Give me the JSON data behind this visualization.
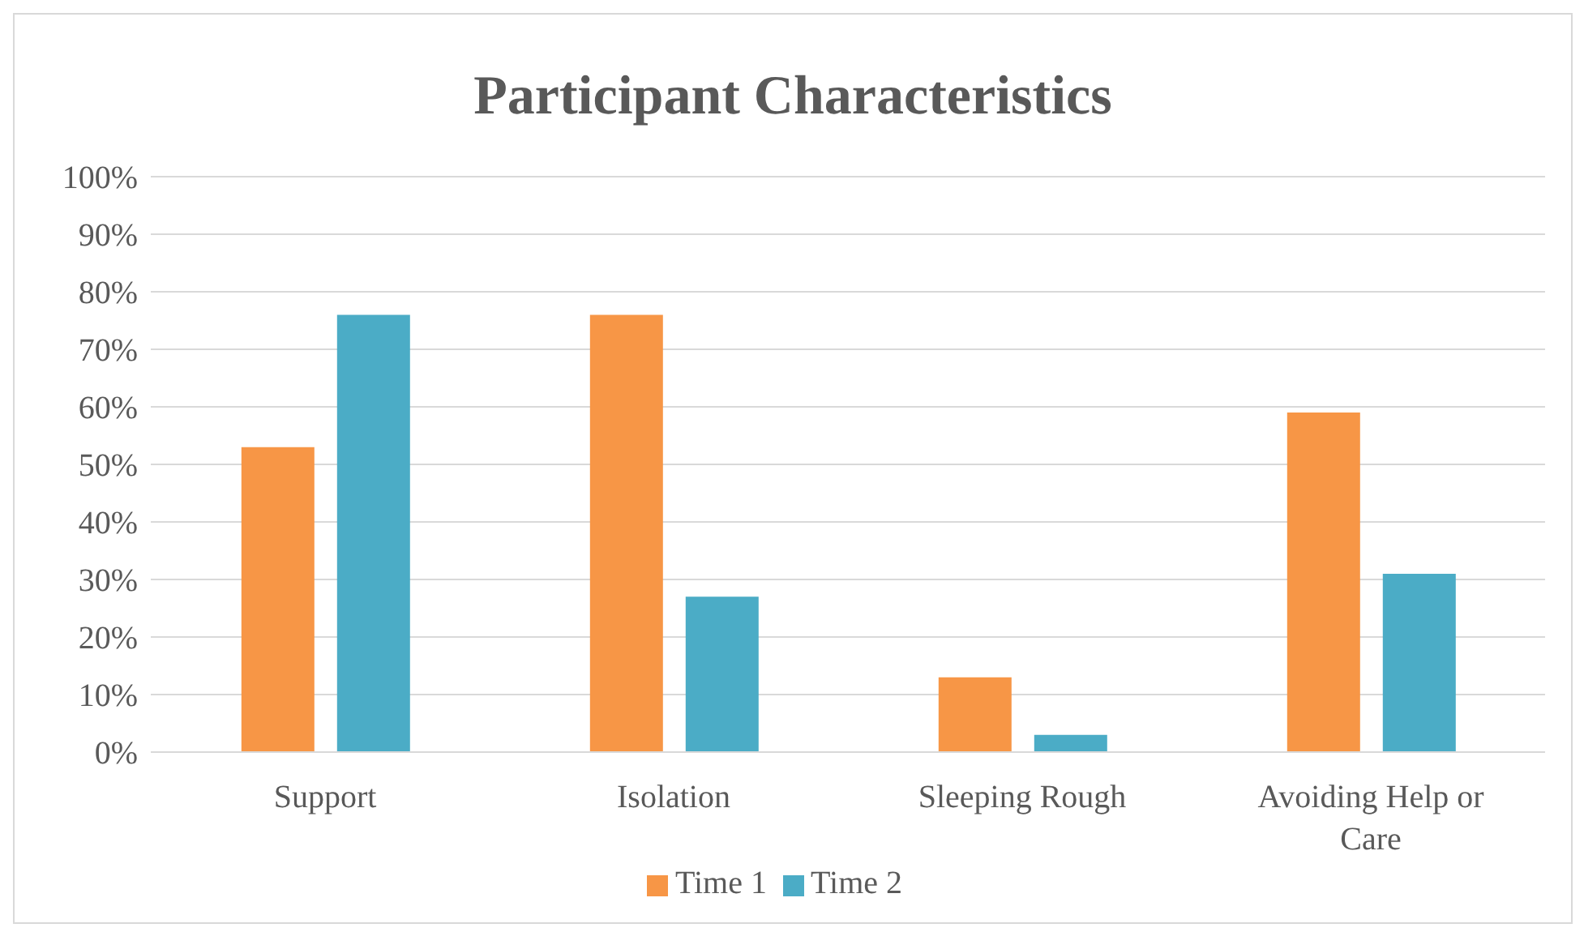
{
  "chart_data": {
    "type": "bar",
    "title": "Participant Characteristics",
    "categories": [
      "Support",
      "Isolation",
      "Sleeping Rough",
      "Avoiding Help or Care"
    ],
    "series": [
      {
        "name": "Time 1",
        "color": "#f79646",
        "values": [
          53,
          76,
          13,
          59
        ]
      },
      {
        "name": "Time 2",
        "color": "#4bacc6",
        "values": [
          76,
          27,
          3,
          31
        ]
      }
    ],
    "ylim": [
      0,
      100
    ],
    "yticks": [
      {
        "value": 0,
        "label": "0%"
      },
      {
        "value": 10,
        "label": "10%"
      },
      {
        "value": 20,
        "label": "20%"
      },
      {
        "value": 30,
        "label": "30%"
      },
      {
        "value": 40,
        "label": "40%"
      },
      {
        "value": 50,
        "label": "50%"
      },
      {
        "value": 60,
        "label": "60%"
      },
      {
        "value": 70,
        "label": "70%"
      },
      {
        "value": 80,
        "label": "80%"
      },
      {
        "value": 90,
        "label": "90%"
      },
      {
        "value": 100,
        "label": "100%"
      }
    ],
    "grid": "y",
    "legend": "bottom"
  }
}
